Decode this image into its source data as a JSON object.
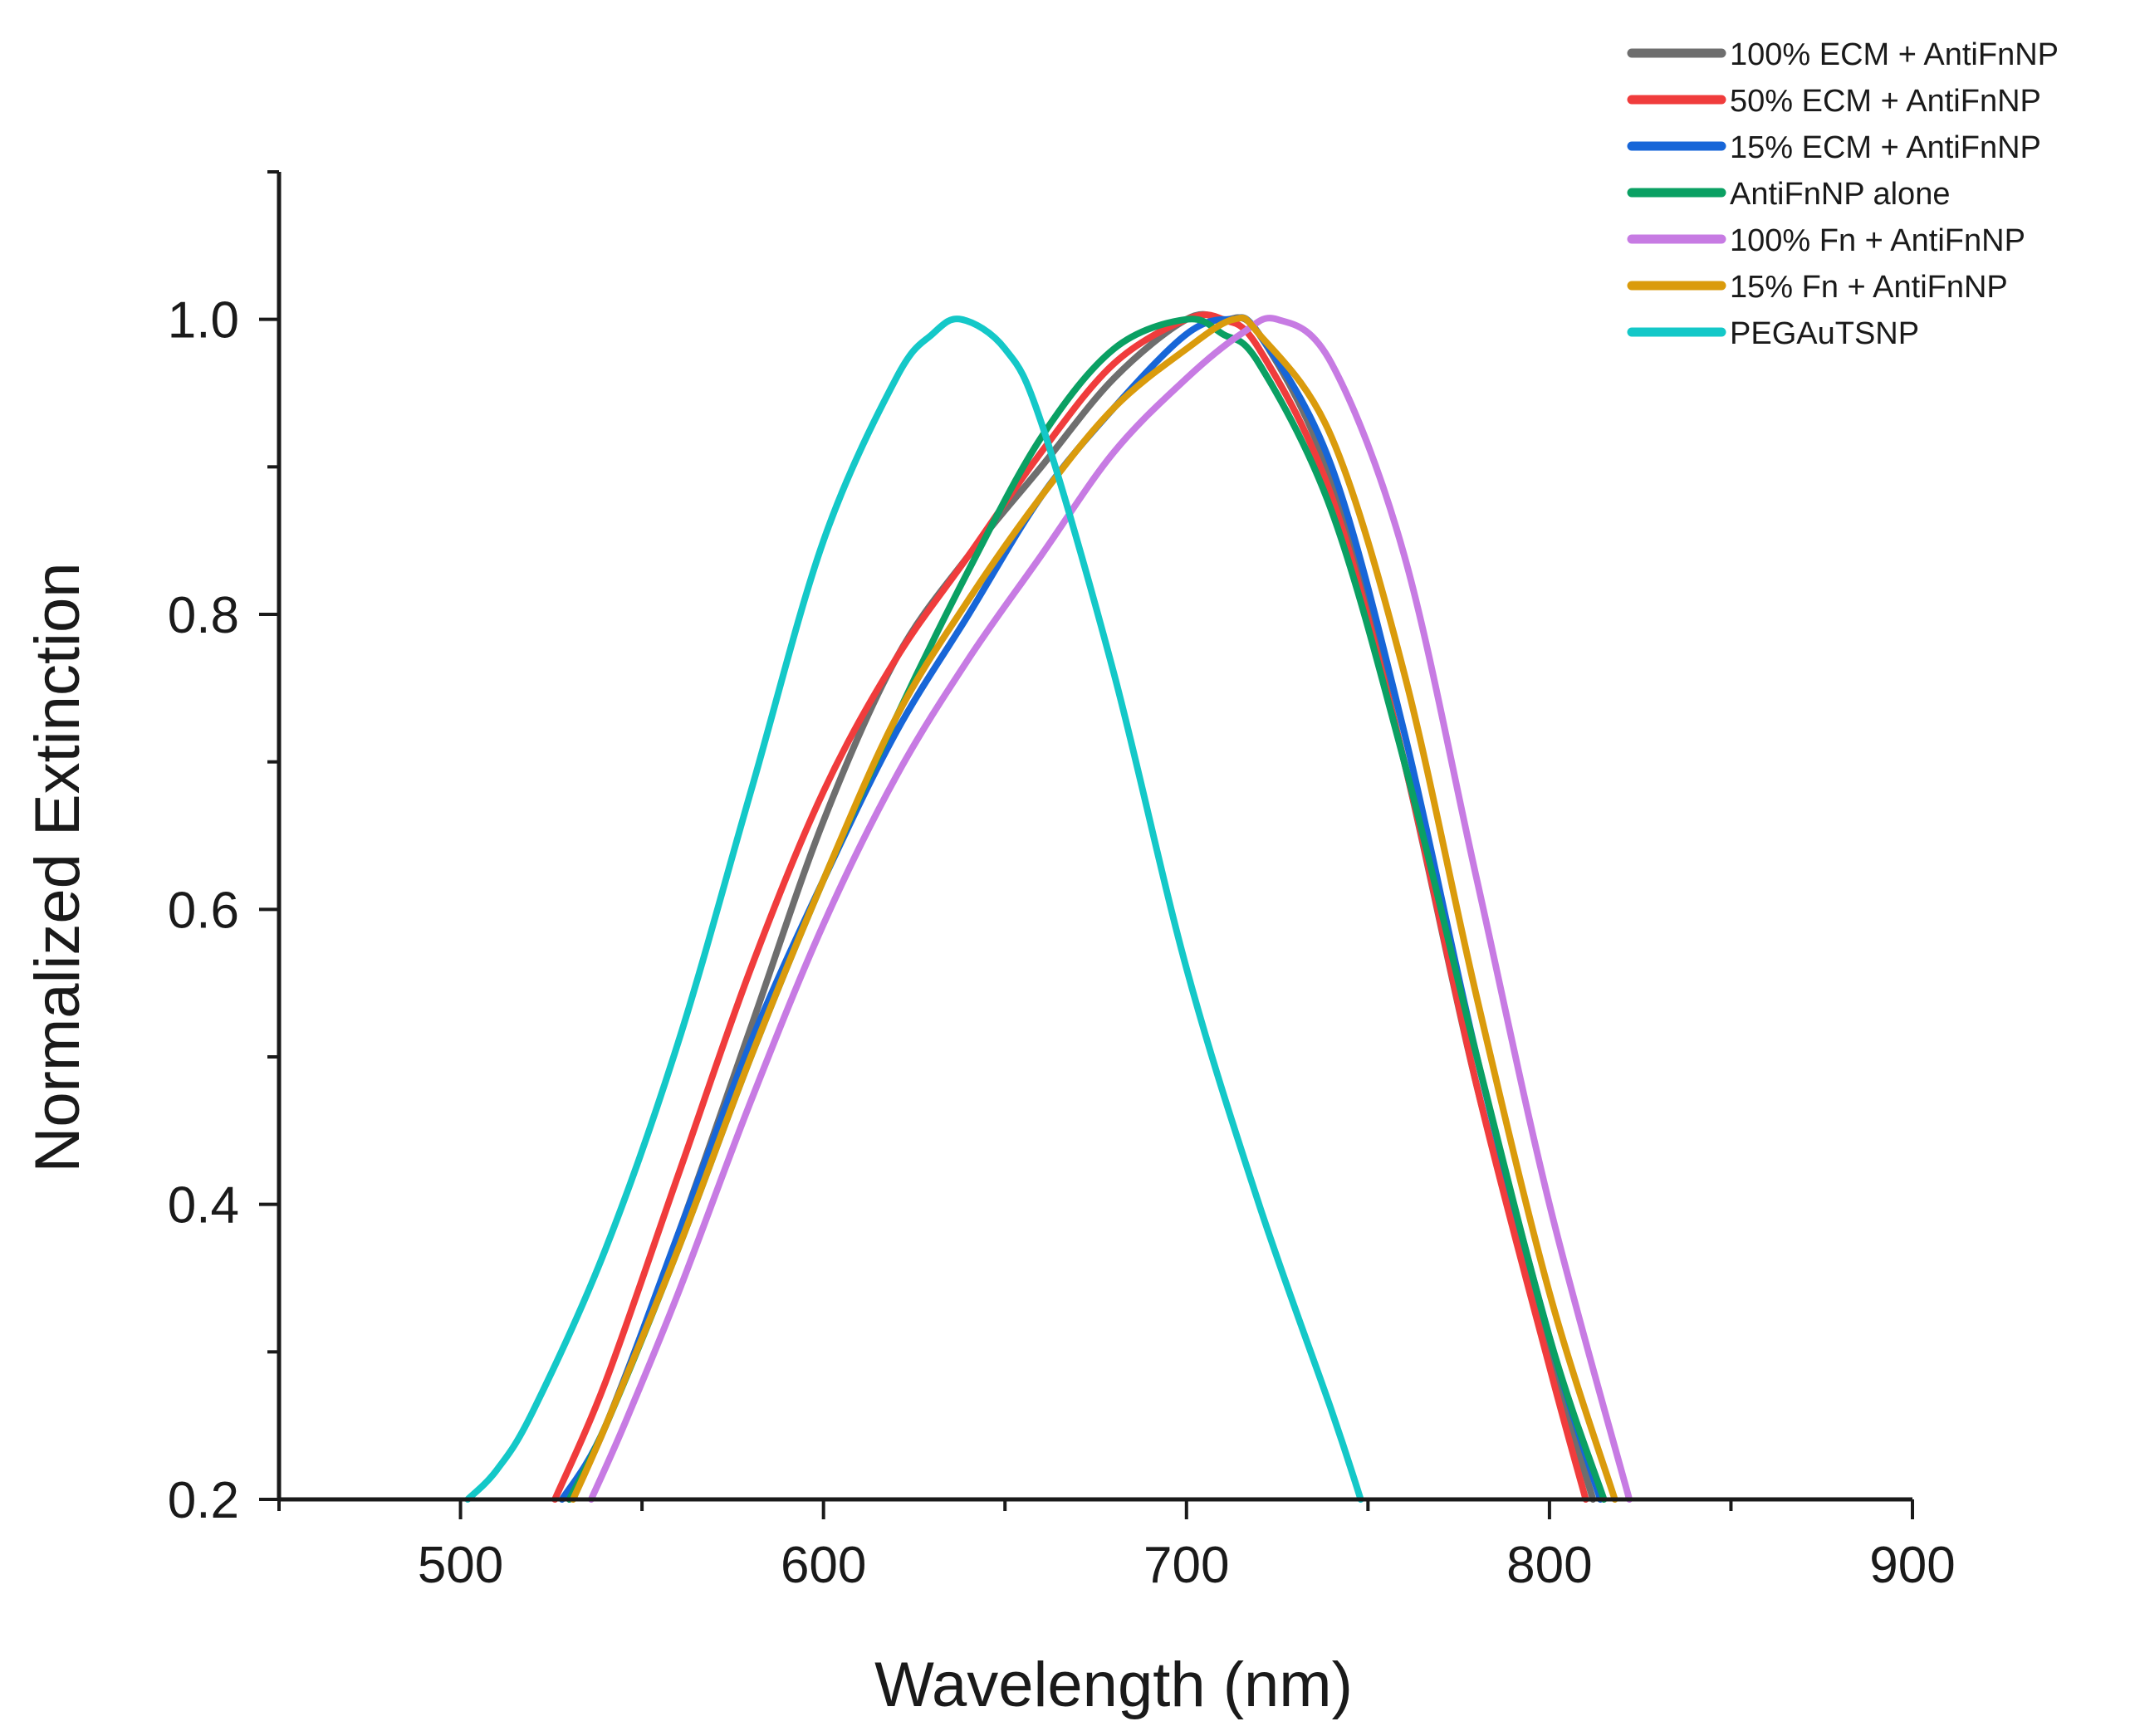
{
  "chart_data": {
    "type": "line",
    "title": "",
    "xlabel": "Wavelength (nm)",
    "ylabel": "Normalized Extinction",
    "xlim": [
      450,
      900
    ],
    "ylim": [
      0.2,
      1.1
    ],
    "xticks": [
      500,
      600,
      700,
      800,
      900
    ],
    "xtick_labels": [
      "500",
      "600",
      "700",
      "800",
      "900"
    ],
    "yticks": [
      0.2,
      0.4,
      0.6,
      0.8,
      1.0
    ],
    "ytick_labels": [
      "0.2",
      "0.4",
      "0.6",
      "0.8",
      "1.0"
    ],
    "x_minor_step": 50,
    "y_minor_step": 0.1,
    "grid": false,
    "legend_position": "top-right",
    "series": [
      {
        "name": "100% ECM + AntiFnNP",
        "color": "#6e6e6e",
        "x": [
          530,
          540,
          560,
          580,
          600,
          620,
          640,
          660,
          680,
          700,
          710,
          720,
          740,
          760,
          780,
          800,
          812
        ],
        "y": [
          0.2,
          0.25,
          0.38,
          0.52,
          0.66,
          0.77,
          0.84,
          0.9,
          0.96,
          1.0,
          1.0,
          0.99,
          0.89,
          0.7,
          0.48,
          0.3,
          0.2
        ]
      },
      {
        "name": "50% ECM + AntiFnNP",
        "color": "#f03c3c",
        "x": [
          526,
          540,
          560,
          580,
          600,
          620,
          640,
          660,
          680,
          700,
          710,
          720,
          740,
          760,
          780,
          800,
          810
        ],
        "y": [
          0.2,
          0.28,
          0.42,
          0.56,
          0.68,
          0.77,
          0.84,
          0.91,
          0.97,
          1.0,
          1.0,
          0.98,
          0.88,
          0.7,
          0.48,
          0.29,
          0.2
        ]
      },
      {
        "name": "15% ECM + AntiFnNP",
        "color": "#1766d8",
        "x": [
          528,
          540,
          560,
          580,
          600,
          620,
          640,
          660,
          680,
          700,
          712,
          720,
          740,
          760,
          780,
          800,
          814
        ],
        "y": [
          0.2,
          0.25,
          0.38,
          0.51,
          0.62,
          0.72,
          0.8,
          0.88,
          0.94,
          0.99,
          1.0,
          0.99,
          0.9,
          0.72,
          0.5,
          0.31,
          0.2
        ]
      },
      {
        "name": "AntiFnNP alone",
        "color": "#0aa063",
        "x": [
          530,
          540,
          560,
          580,
          600,
          620,
          640,
          660,
          680,
          700,
          710,
          720,
          740,
          760,
          780,
          800,
          815
        ],
        "y": [
          0.2,
          0.25,
          0.37,
          0.5,
          0.62,
          0.73,
          0.83,
          0.92,
          0.98,
          1.0,
          0.99,
          0.97,
          0.87,
          0.7,
          0.5,
          0.31,
          0.2
        ]
      },
      {
        "name": "100% Fn + AntiFnNP",
        "color": "#c77be3",
        "x": [
          536,
          545,
          560,
          580,
          600,
          620,
          640,
          660,
          680,
          700,
          715,
          725,
          740,
          760,
          780,
          800,
          822
        ],
        "y": [
          0.2,
          0.25,
          0.34,
          0.47,
          0.59,
          0.69,
          0.77,
          0.84,
          0.91,
          0.96,
          0.99,
          1.0,
          0.97,
          0.84,
          0.62,
          0.4,
          0.2
        ]
      },
      {
        "name": "15% Fn + AntiFnNP",
        "color": "#da9b0c",
        "x": [
          531,
          540,
          560,
          580,
          600,
          620,
          640,
          660,
          680,
          700,
          713,
          720,
          740,
          760,
          780,
          800,
          818
        ],
        "y": [
          0.2,
          0.25,
          0.37,
          0.5,
          0.62,
          0.73,
          0.81,
          0.88,
          0.94,
          0.98,
          1.0,
          0.99,
          0.92,
          0.76,
          0.54,
          0.34,
          0.2
        ]
      },
      {
        "name": "PEGAuTSNP",
        "color": "#14c8c8",
        "x": [
          502,
          510,
          520,
          540,
          560,
          580,
          600,
          620,
          630,
          638,
          650,
          660,
          680,
          700,
          720,
          740,
          748
        ],
        "y": [
          0.2,
          0.22,
          0.26,
          0.37,
          0.51,
          0.68,
          0.85,
          0.96,
          0.99,
          1.0,
          0.98,
          0.93,
          0.76,
          0.56,
          0.4,
          0.26,
          0.2
        ]
      }
    ]
  }
}
